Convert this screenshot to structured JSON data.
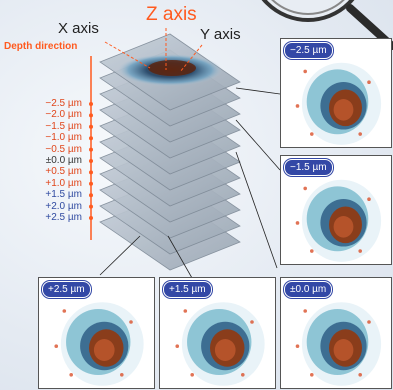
{
  "axes": {
    "x_label": "X axis",
    "y_label": "Y axis",
    "z_label": "Z axis"
  },
  "depth": {
    "title": "Depth direction",
    "levels": [
      "−2.5 µm",
      "−2.0 µm",
      "−1.5 µm",
      "−1.0 µm",
      "−0.5 µm",
      "±0.0 µm",
      "+0.5 µm",
      "+1.0 µm",
      "+1.5 µm",
      "+2.0 µm",
      "+2.5 µm"
    ]
  },
  "panels": {
    "right_top": "−2.5 µm",
    "right_mid": "−1.5 µm",
    "right_bottom": "±0.0 µm",
    "bottom_left": "+2.5 µm",
    "bottom_mid": "+1.5 µm"
  },
  "colors": {
    "accent_orange": "#ff5a1f",
    "badge_blue": "#3348a6",
    "negative_text": "#e0451a",
    "positive_text": "#2f4aa0"
  }
}
